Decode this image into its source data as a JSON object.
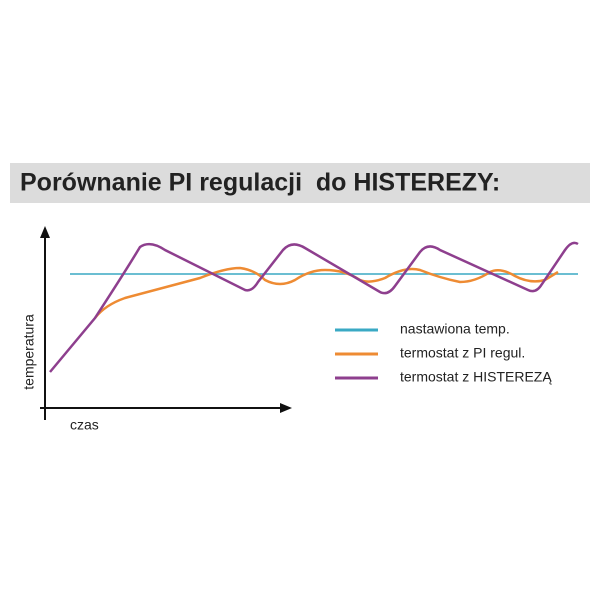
{
  "title": "Porównanie PI regulacji  do HISTEREZY:",
  "axes": {
    "y_label": "temperatura",
    "x_label": "czas"
  },
  "legend": [
    "nastawiona temp.",
    "termostat z PI regul.",
    "termostat z HISTEREZĄ"
  ]
}
